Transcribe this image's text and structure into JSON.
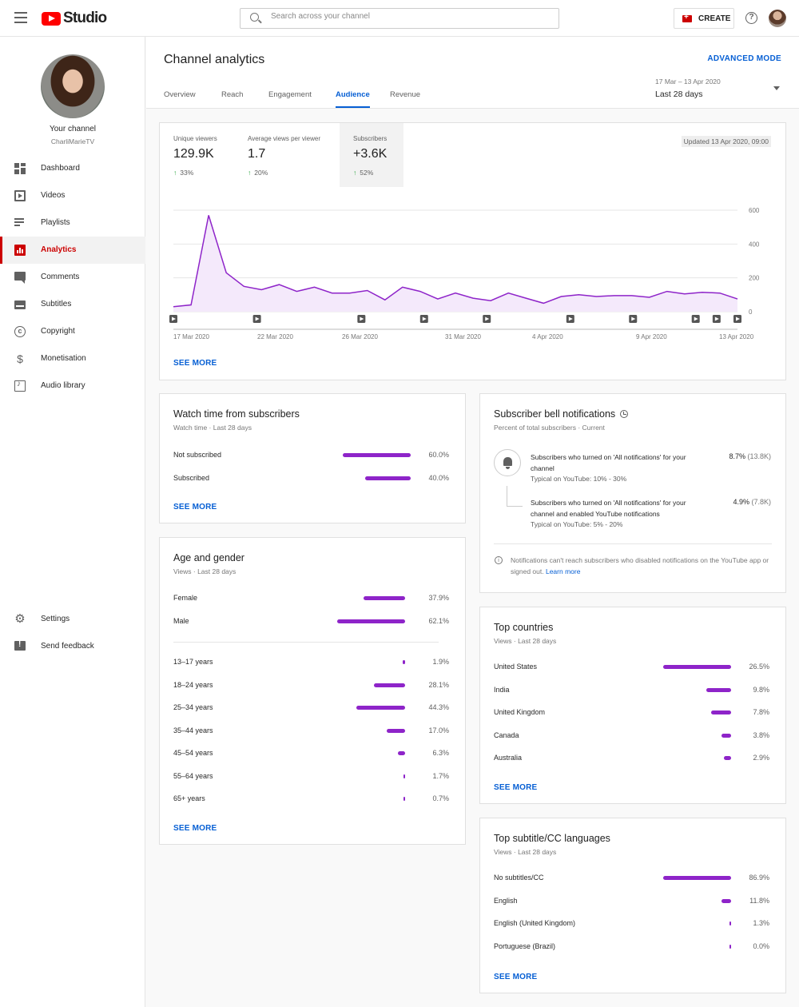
{
  "topbar": {
    "logo_text": "Studio",
    "search_placeholder": "Search across your channel",
    "create_label": "CREATE",
    "help_glyph": "?"
  },
  "sidebar": {
    "channel_label": "Your channel",
    "channel_handle": "CharliMarieTV",
    "items": [
      {
        "label": "Dashboard",
        "icon": "dashboard-icon"
      },
      {
        "label": "Videos",
        "icon": "videos-icon"
      },
      {
        "label": "Playlists",
        "icon": "playlists-icon"
      },
      {
        "label": "Analytics",
        "icon": "analytics-icon",
        "active": true
      },
      {
        "label": "Comments",
        "icon": "comments-icon"
      },
      {
        "label": "Subtitles",
        "icon": "subtitles-icon"
      },
      {
        "label": "Copyright",
        "icon": "copyright-icon"
      },
      {
        "label": "Monetisation",
        "icon": "monetisation-icon"
      },
      {
        "label": "Audio library",
        "icon": "audio-library-icon"
      }
    ],
    "bottom_items": [
      {
        "label": "Settings",
        "icon": "settings-icon"
      },
      {
        "label": "Send feedback",
        "icon": "feedback-icon"
      }
    ]
  },
  "header": {
    "title": "Channel analytics",
    "advanced_mode": "ADVANCED MODE",
    "tabs": [
      "Overview",
      "Reach",
      "Engagement",
      "Audience",
      "Revenue"
    ],
    "active_tab": "Audience",
    "date_range": "17 Mar – 13 Apr 2020",
    "period": "Last 28 days"
  },
  "overview": {
    "metrics": [
      {
        "label": "Unique viewers",
        "value": "129.9K",
        "delta": "33%"
      },
      {
        "label": "Average views per viewer",
        "value": "1.7",
        "delta": "20%"
      },
      {
        "label": "Subscribers",
        "value": "+3.6K",
        "delta": "52%"
      }
    ],
    "updated": "Updated 13 Apr 2020, 09:00",
    "see_more": "SEE MORE"
  },
  "chart_data": {
    "type": "area",
    "series": [
      {
        "values": [
          30,
          40,
          570,
          230,
          150,
          130,
          160,
          120,
          145,
          110,
          110,
          125,
          70,
          145,
          120,
          75,
          110,
          80,
          65,
          110,
          80,
          50,
          90,
          100,
          90,
          95,
          95,
          85,
          120,
          105,
          115,
          110,
          75
        ]
      }
    ],
    "x_tick_labels": [
      "17 Mar 2020",
      "22 Mar 2020",
      "26 Mar 2020",
      "31 Mar 2020",
      "4 Apr 2020",
      "9 Apr 2020",
      "13 Apr 2020"
    ],
    "y_ticks": [
      0,
      200,
      400,
      600
    ],
    "ylim": [
      0,
      600
    ],
    "grid": true,
    "line_color": "#8e24c9",
    "fill_color": "#f4e9fb"
  },
  "watch_time": {
    "title": "Watch time from subscribers",
    "subtitle": "Watch time · Last 28 days",
    "rows": [
      {
        "label": "Not subscribed",
        "value": "60.0%",
        "fraction": 0.6
      },
      {
        "label": "Subscribed",
        "value": "40.0%",
        "fraction": 0.4
      }
    ],
    "see_more": "SEE MORE"
  },
  "age_gender": {
    "title": "Age and gender",
    "subtitle": "Views · Last 28 days",
    "gender": [
      {
        "label": "Female",
        "value": "37.9%",
        "fraction": 0.379
      },
      {
        "label": "Male",
        "value": "62.1%",
        "fraction": 0.621
      }
    ],
    "ages": [
      {
        "label": "13–17 years",
        "value": "1.9%",
        "fraction": 0.019
      },
      {
        "label": "18–24 years",
        "value": "28.1%",
        "fraction": 0.281
      },
      {
        "label": "25–34 years",
        "value": "44.3%",
        "fraction": 0.443
      },
      {
        "label": "35–44 years",
        "value": "17.0%",
        "fraction": 0.17
      },
      {
        "label": "45–54 years",
        "value": "6.3%",
        "fraction": 0.063
      },
      {
        "label": "55–64 years",
        "value": "1.7%",
        "fraction": 0.017
      },
      {
        "label": "65+ years",
        "value": "0.7%",
        "fraction": 0.007
      }
    ],
    "see_more": "SEE MORE"
  },
  "bell": {
    "title": "Subscriber bell notifications",
    "subtitle": "Percent of total subscribers · Current",
    "item1": {
      "text": "Subscribers who turned on 'All notifications' for your channel",
      "typical": "Typical on YouTube: 10% - 30%",
      "value": "8.7%",
      "count": "(13.8K)"
    },
    "item2": {
      "text": "Subscribers who turned on 'All notifications' for your channel and enabled YouTube notifications",
      "typical": "Typical on YouTube: 5% - 20%",
      "value": "4.9%",
      "count": "(7.8K)"
    },
    "note": "Notifications can't reach subscribers who disabled notifications on the YouTube app or signed out.",
    "learn_more": "Learn more"
  },
  "countries": {
    "title": "Top countries",
    "subtitle": "Views · Last 28 days",
    "rows": [
      {
        "label": "United States",
        "value": "26.5%",
        "fraction": 0.265
      },
      {
        "label": "India",
        "value": "9.8%",
        "fraction": 0.098
      },
      {
        "label": "United Kingdom",
        "value": "7.8%",
        "fraction": 0.078
      },
      {
        "label": "Canada",
        "value": "3.8%",
        "fraction": 0.038
      },
      {
        "label": "Australia",
        "value": "2.9%",
        "fraction": 0.029
      }
    ],
    "see_more": "SEE MORE"
  },
  "subtitles": {
    "title": "Top subtitle/CC languages",
    "subtitle": "Views · Last 28 days",
    "rows": [
      {
        "label": "No subtitles/CC",
        "value": "86.9%",
        "fraction": 0.869
      },
      {
        "label": "English",
        "value": "11.8%",
        "fraction": 0.118
      },
      {
        "label": "English (United Kingdom)",
        "value": "1.3%",
        "fraction": 0.013
      },
      {
        "label": "Portuguese (Brazil)",
        "value": "0.0%",
        "fraction": 0.0
      }
    ],
    "see_more": "SEE MORE"
  },
  "colors": {
    "accent": "#065fd4",
    "brand": "#ff0000",
    "bar": "#8e24c9",
    "positive": "#2ba640"
  }
}
